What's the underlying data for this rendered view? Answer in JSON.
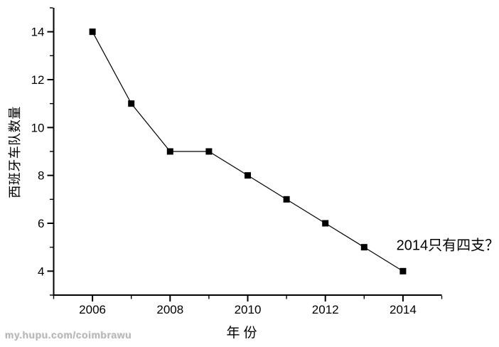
{
  "watermark": {
    "text": "my.hupu.com/coimbrawu",
    "color": "#b4b4b4"
  },
  "chart_data": {
    "type": "line",
    "title": "",
    "xlabel": "年份",
    "ylabel": "西班牙车队数量",
    "x": [
      2006,
      2007,
      2008,
      2009,
      2010,
      2011,
      2012,
      2013,
      2014
    ],
    "series": [
      {
        "name": "西班牙车队数量",
        "values": [
          14,
          11,
          9,
          9,
          8,
          7,
          6,
          5,
          4
        ],
        "color": "#000000",
        "marker": "square"
      }
    ],
    "xlim": [
      2005,
      2015
    ],
    "ylim": [
      3,
      15
    ],
    "x_major_ticks": [
      2006,
      2008,
      2010,
      2012,
      2014
    ],
    "x_minor_ticks": [
      2005,
      2007,
      2009,
      2011,
      2013,
      2015
    ],
    "y_major_ticks": [
      4,
      6,
      8,
      10,
      12,
      14
    ],
    "y_minor_ticks": [
      3,
      5,
      7,
      9,
      11,
      13,
      15
    ],
    "grid": false,
    "legend": "none",
    "axis_color": "#000000",
    "annotation": {
      "text": "2014只有四支？",
      "at_x": 2013.83,
      "at_y": 5.1
    }
  }
}
